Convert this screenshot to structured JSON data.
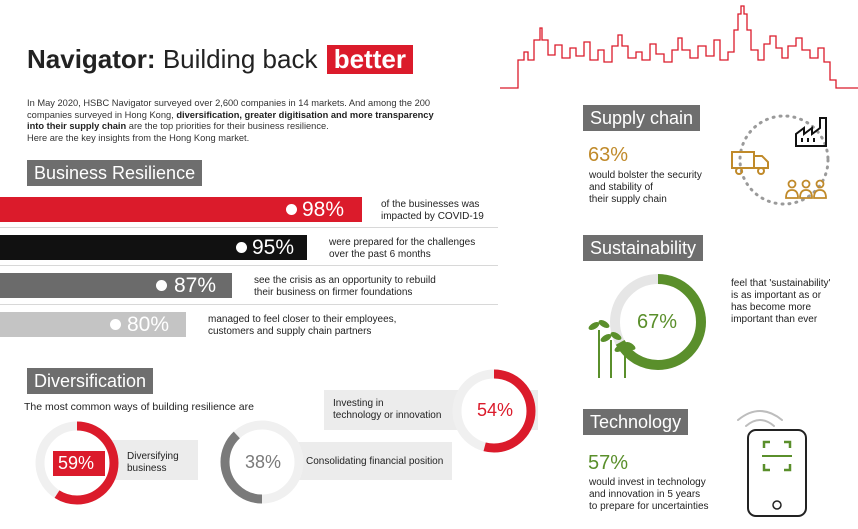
{
  "header": {
    "title_bold": "Navigator:",
    "title_rest": "Building back",
    "title_highlight": "better"
  },
  "intro": {
    "line1": "In May 2020, HSBC Navigator surveyed over 2,600 companies in 14 markets. And among the 200",
    "line2_a": "companies surveyed in Hong Kong, ",
    "line2_b": "diversification, greater digitisation and more transparency",
    "line3_b": "into their supply chain",
    "line3_a": " are the top priorities for their business resilience.",
    "line4": "Here are the key insights from the Hong Kong market."
  },
  "business_resilience": {
    "heading": "Business Resilience",
    "items": [
      {
        "value": "98%",
        "desc_1": "of the businesses was",
        "desc_2": "impacted by COVID-19",
        "color": "#db1b2b"
      },
      {
        "value": "95%",
        "desc_1": "were prepared for the challenges",
        "desc_2": "over the past 6 months",
        "color": "#111111"
      },
      {
        "value": "87%",
        "desc_1": "see the crisis as an opportunity to rebuild",
        "desc_2": "their business on firmer foundations",
        "color": "#6b6b6b"
      },
      {
        "value": "80%",
        "desc_1": "managed to feel closer to their employees,",
        "desc_2": "customers and supply chain partners",
        "color": "#c4c4c4"
      }
    ]
  },
  "diversification": {
    "heading": "Diversification",
    "subtitle": "The most common ways of building resilience are",
    "items": [
      {
        "value": "59%",
        "label_1": "Diversifying",
        "label_2": "business",
        "color": "#db1b2b",
        "fraction": 0.59
      },
      {
        "value": "38%",
        "label_1": "Consolidating financial position",
        "label_2": "",
        "color": "#7a7a7a",
        "fraction": 0.38
      },
      {
        "value": "54%",
        "label_1": "Investing in",
        "label_2": "technology or innovation",
        "color": "#db1b2b",
        "fraction": 0.54
      }
    ]
  },
  "supply_chain": {
    "heading": "Supply chain",
    "value": "63%",
    "desc_1": "would bolster the security",
    "desc_2": "and stability of",
    "desc_3": "their supply chain"
  },
  "sustainability": {
    "heading": "Sustainability",
    "value": "67%",
    "fraction": 0.67,
    "desc_1": "feel that 'sustainability'",
    "desc_2": "is as important as or",
    "desc_3": "has become more",
    "desc_4": "important than ever"
  },
  "technology": {
    "heading": "Technology",
    "value": "57%",
    "desc_1": "would invest in technology",
    "desc_2": "and innovation in 5 years",
    "desc_3": "to prepare for uncertainties"
  },
  "colors": {
    "red": "#db1b2b",
    "green": "#5a8f2b",
    "gold": "#c08a2a",
    "grey": "#6e6e6e"
  }
}
